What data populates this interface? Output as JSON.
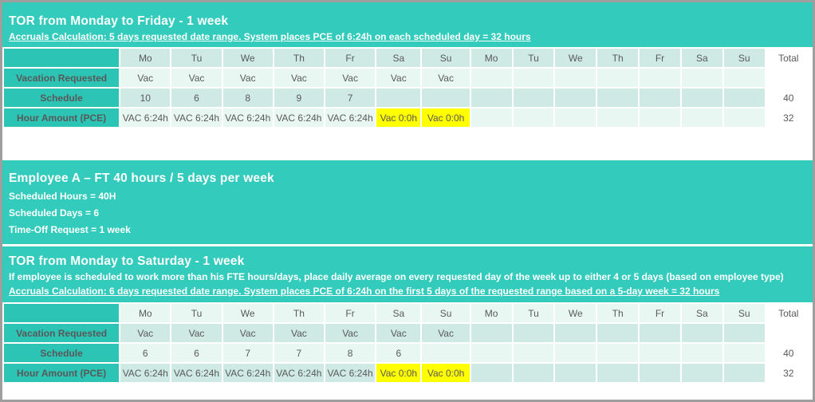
{
  "colors": {
    "teal_band": "#33cbbc",
    "teal_label_cell": "#2cc4b4",
    "mint_dark": "#cfeae4",
    "mint_light": "#e9f7f3",
    "highlight_yellow": "#ffff00",
    "cell_text": "#595959",
    "frame_border": "#9e9e9e"
  },
  "section_tor_mon_fri": {
    "title": "TOR from Monday to Friday - 1 week",
    "accruals_note": "Accruals Calculation: 5 days requested date range. System places PCE of 6:24h on each scheduled day = 32 hours"
  },
  "tor_mon_fri_table": {
    "day_headers": [
      "Mo",
      "Tu",
      "We",
      "Th",
      "Fr",
      "Sa",
      "Su",
      "Mo",
      "Tu",
      "We",
      "Th",
      "Fr",
      "Sa",
      "Su"
    ],
    "total_header": "Total",
    "row_shades": [
      "dark",
      "light",
      "dark",
      "light"
    ],
    "rows": [
      {
        "label": "Vacation Requested",
        "cells": [
          "Vac",
          "Vac",
          "Vac",
          "Vac",
          "Vac",
          "Vac",
          "Vac",
          "",
          "",
          "",
          "",
          "",
          "",
          ""
        ],
        "total": "",
        "highlights": []
      },
      {
        "label": "Schedule",
        "cells": [
          "10",
          "6",
          "8",
          "9",
          "7",
          "",
          "",
          "",
          "",
          "",
          "",
          "",
          "",
          ""
        ],
        "total": "40",
        "highlights": []
      },
      {
        "label": "Hour Amount (PCE)",
        "cells": [
          "VAC 6:24h",
          "VAC 6:24h",
          "VAC 6:24h",
          "VAC 6:24h",
          "VAC 6:24h",
          "Vac 0:0h",
          "Vac 0:0h",
          "",
          "",
          "",
          "",
          "",
          "",
          ""
        ],
        "total": "32",
        "highlights": [
          5,
          6
        ]
      }
    ]
  },
  "employee_info": {
    "title": "Employee A – FT 40 hours / 5 days per week",
    "lines": [
      "Scheduled Hours = 40H",
      "Scheduled Days = 6",
      "Time-Off Request = 1 week"
    ]
  },
  "section_tor_mon_sat": {
    "title": "TOR from Monday to Saturday - 1 week",
    "description": "If employee is scheduled to work more than his FTE hours/days, place daily average on every requested day of the week up to either 4 or 5 days (based on employee type)",
    "accruals_note": "Accruals Calculation: 6 days requested date range. System places PCE of 6:24h on the first 5 days of the requested range based on a 5-day week = 32 hours"
  },
  "tor_mon_sat_table": {
    "day_headers": [
      "Mo",
      "Tu",
      "We",
      "Th",
      "Fr",
      "Sa",
      "Su",
      "Mo",
      "Tu",
      "We",
      "Th",
      "Fr",
      "Sa",
      "Su"
    ],
    "total_header": "Total",
    "row_shades": [
      "light",
      "dark",
      "light",
      "dark"
    ],
    "rows": [
      {
        "label": "Vacation Requested",
        "cells": [
          "Vac",
          "Vac",
          "Vac",
          "Vac",
          "Vac",
          "Vac",
          "Vac",
          "",
          "",
          "",
          "",
          "",
          "",
          ""
        ],
        "total": "",
        "highlights": []
      },
      {
        "label": "Schedule",
        "cells": [
          "6",
          "6",
          "7",
          "7",
          "8",
          "6",
          "",
          "",
          "",
          "",
          "",
          "",
          "",
          ""
        ],
        "total": "40",
        "highlights": []
      },
      {
        "label": "Hour Amount (PCE)",
        "cells": [
          "VAC 6:24h",
          "VAC 6:24h",
          "VAC 6:24h",
          "VAC 6:24h",
          "VAC 6:24h",
          "Vac 0:0h",
          "Vac 0:0h",
          "",
          "",
          "",
          "",
          "",
          "",
          ""
        ],
        "total": "32",
        "highlights": [
          5,
          6
        ]
      }
    ]
  }
}
